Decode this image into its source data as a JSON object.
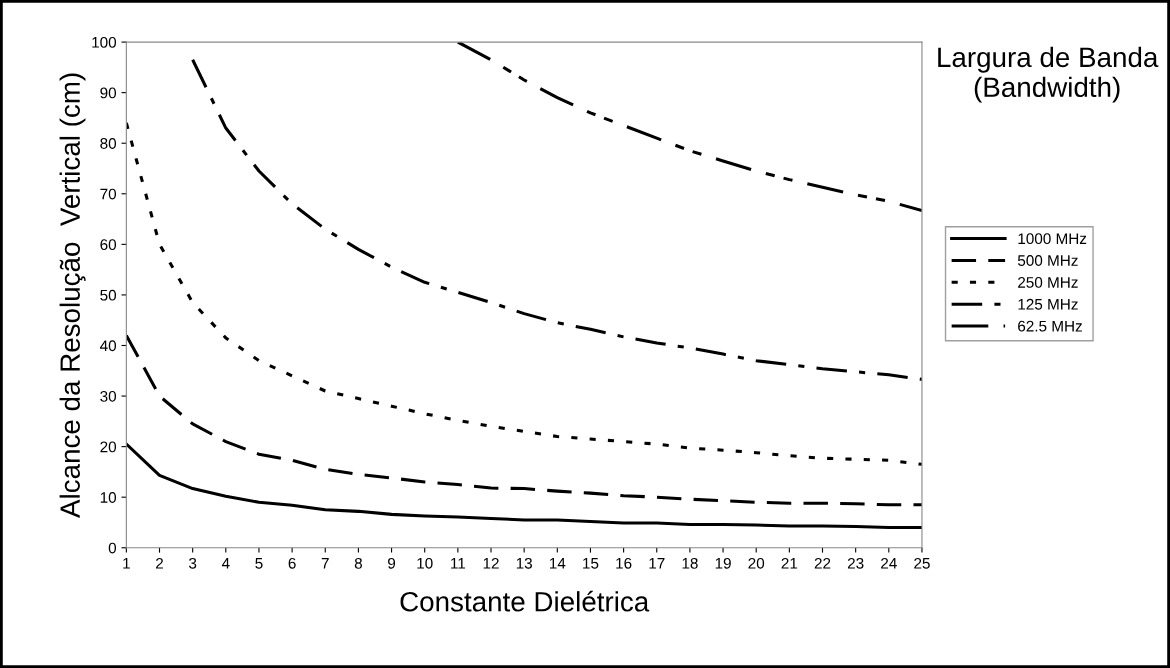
{
  "chart_data": {
    "type": "line",
    "xlabel": "Constante Dielétrica",
    "ylabel": "Alcance da Resolução  Vertical (cm)",
    "legend_title": "Largura de Banda (Bandwidth)",
    "legend": "right",
    "grid": false,
    "marker": "none",
    "x": [
      1,
      2,
      3,
      4,
      5,
      6,
      7,
      8,
      9,
      10,
      11,
      12,
      13,
      14,
      15,
      16,
      17,
      18,
      19,
      20,
      21,
      22,
      23,
      24,
      25
    ],
    "xlim": [
      1,
      25
    ],
    "xticks": [
      1,
      2,
      3,
      4,
      5,
      6,
      7,
      8,
      9,
      10,
      11,
      12,
      13,
      14,
      15,
      16,
      17,
      18,
      19,
      20,
      21,
      22,
      23,
      24,
      25
    ],
    "ylim": [
      0,
      100
    ],
    "yticks": [
      0,
      10,
      20,
      30,
      40,
      50,
      60,
      70,
      80,
      90,
      100
    ],
    "series": [
      {
        "name": "1000 MHz",
        "color": "#000000",
        "line_style": "solid",
        "values": [
          20.5,
          14.3,
          11.7,
          10.2,
          9,
          8.4,
          7.5,
          7.2,
          6.6,
          6.3,
          6.1,
          5.8,
          5.5,
          5.5,
          5.2,
          4.9,
          4.9,
          4.6,
          4.6,
          4.5,
          4.3,
          4.3,
          4.2,
          4,
          4
        ]
      },
      {
        "name": "500 MHz",
        "color": "#000000",
        "line_style": "dashed",
        "values": [
          42,
          30,
          24.5,
          21,
          18.5,
          17.3,
          15.5,
          14.5,
          13.8,
          13,
          12.5,
          11.8,
          11.7,
          11.2,
          10.8,
          10.3,
          10,
          9.6,
          9.3,
          9,
          8.8,
          8.8,
          8.7,
          8.5,
          8.5
        ]
      },
      {
        "name": "250 MHz",
        "color": "#000000",
        "line_style": "dotted",
        "values": [
          84,
          60,
          48.5,
          41.5,
          37,
          34,
          31,
          29.5,
          28,
          26.5,
          25.2,
          24,
          23,
          22,
          21.5,
          21,
          20.5,
          19.7,
          19.3,
          18.8,
          18.2,
          17.7,
          17.5,
          17.3,
          16.5
        ]
      },
      {
        "name": "125 MHz",
        "color": "#000000",
        "line_style": "dashdot",
        "values": [
          null,
          null,
          96.5,
          83,
          74.5,
          68,
          63,
          59,
          55.5,
          52.5,
          50.5,
          48.5,
          46.3,
          44.5,
          43.2,
          41.7,
          40.5,
          39.5,
          38.3,
          37,
          36.2,
          35.4,
          34.8,
          34.2,
          33.3
        ]
      },
      {
        "name": "62.5 MHz",
        "color": "#000000",
        "line_style": "longdashdot",
        "values": [
          null,
          null,
          null,
          null,
          null,
          null,
          null,
          null,
          null,
          null,
          100,
          96.5,
          92.5,
          89,
          86,
          83.5,
          81,
          78.5,
          76.5,
          74.5,
          72.8,
          71.3,
          69.8,
          68.5,
          66.7
        ]
      }
    ]
  }
}
